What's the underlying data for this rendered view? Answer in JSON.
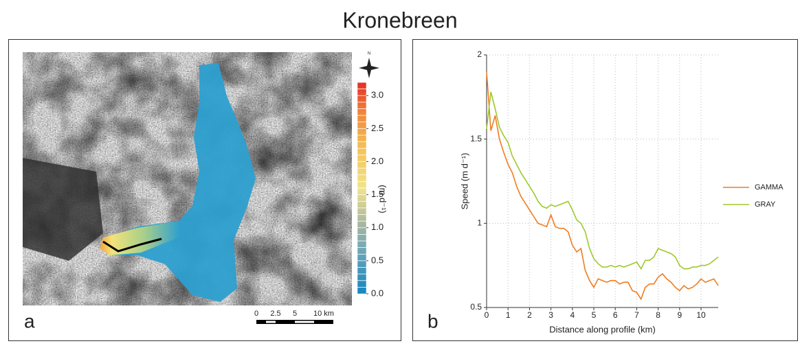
{
  "title": "Kronebreen",
  "map": {
    "panel_label": "a",
    "north": "N",
    "unit_label": "(m d⁻¹)",
    "clim": [
      0,
      3.2
    ],
    "colorbar_ticks": [
      {
        "value": 0,
        "label": "0.0"
      },
      {
        "value": 0.5,
        "label": "0.5"
      },
      {
        "value": 1,
        "label": "1.0"
      },
      {
        "value": 1.5,
        "label": "1.5"
      },
      {
        "value": 2,
        "label": "2.0"
      },
      {
        "value": 2.5,
        "label": "2.5"
      },
      {
        "value": 3,
        "label": "3.0"
      }
    ],
    "scale_ticks": [
      0,
      2.5,
      5,
      {
        "value": 10,
        "label": "10 km"
      }
    ]
  },
  "chart_data": {
    "type": "line",
    "panel_label": "b",
    "x_label": "Distance along profile (km)",
    "y_label": "Speed (m d⁻¹)",
    "x": [
      0,
      0.2,
      0.4,
      0.6,
      0.8,
      1,
      1.2,
      1.4,
      1.6,
      1.8,
      2,
      2.2,
      2.4,
      2.6,
      2.8,
      3,
      3.2,
      3.4,
      3.6,
      3.8,
      4,
      4.2,
      4.4,
      4.6,
      4.8,
      5,
      5.2,
      5.4,
      5.6,
      5.8,
      6,
      6.2,
      6.4,
      6.6,
      6.8,
      7,
      7.2,
      7.4,
      7.6,
      7.8,
      8,
      8.2,
      8.4,
      8.6,
      8.8,
      9,
      9.2,
      9.4,
      9.6,
      9.8,
      10,
      10.2,
      10.4,
      10.6,
      10.8
    ],
    "series": [
      {
        "name": "GAMMA",
        "color": "#f07c1e",
        "values": [
          1.9,
          1.55,
          1.64,
          1.5,
          1.42,
          1.35,
          1.3,
          1.22,
          1.16,
          1.12,
          1.08,
          1.04,
          1.0,
          0.99,
          0.98,
          1.05,
          0.98,
          0.97,
          0.97,
          0.95,
          0.87,
          0.83,
          0.85,
          0.72,
          0.66,
          0.62,
          0.67,
          0.66,
          0.65,
          0.66,
          0.66,
          0.64,
          0.65,
          0.65,
          0.6,
          0.59,
          0.55,
          0.62,
          0.64,
          0.64,
          0.68,
          0.7,
          0.67,
          0.65,
          0.62,
          0.6,
          0.63,
          0.61,
          0.62,
          0.64,
          0.67,
          0.65,
          0.66,
          0.67,
          0.63
        ]
      },
      {
        "name": "GRAY",
        "color": "#9dc92a",
        "values": [
          1.56,
          1.78,
          1.68,
          1.57,
          1.52,
          1.48,
          1.4,
          1.35,
          1.3,
          1.26,
          1.22,
          1.18,
          1.13,
          1.1,
          1.09,
          1.11,
          1.1,
          1.11,
          1.12,
          1.13,
          1.08,
          1.02,
          1.0,
          0.95,
          0.85,
          0.79,
          0.76,
          0.74,
          0.74,
          0.75,
          0.74,
          0.75,
          0.74,
          0.75,
          0.76,
          0.77,
          0.73,
          0.78,
          0.78,
          0.8,
          0.85,
          0.84,
          0.83,
          0.82,
          0.8,
          0.75,
          0.73,
          0.73,
          0.74,
          0.74,
          0.75,
          0.75,
          0.76,
          0.78,
          0.8
        ]
      }
    ],
    "xlim": [
      0,
      10.8
    ],
    "ylim": [
      0.5,
      2
    ],
    "xticks": [
      0,
      1,
      2,
      3,
      4,
      5,
      6,
      7,
      8,
      9,
      10
    ],
    "yticks": [
      0.5,
      1,
      1.5,
      2
    ],
    "grid": true
  }
}
